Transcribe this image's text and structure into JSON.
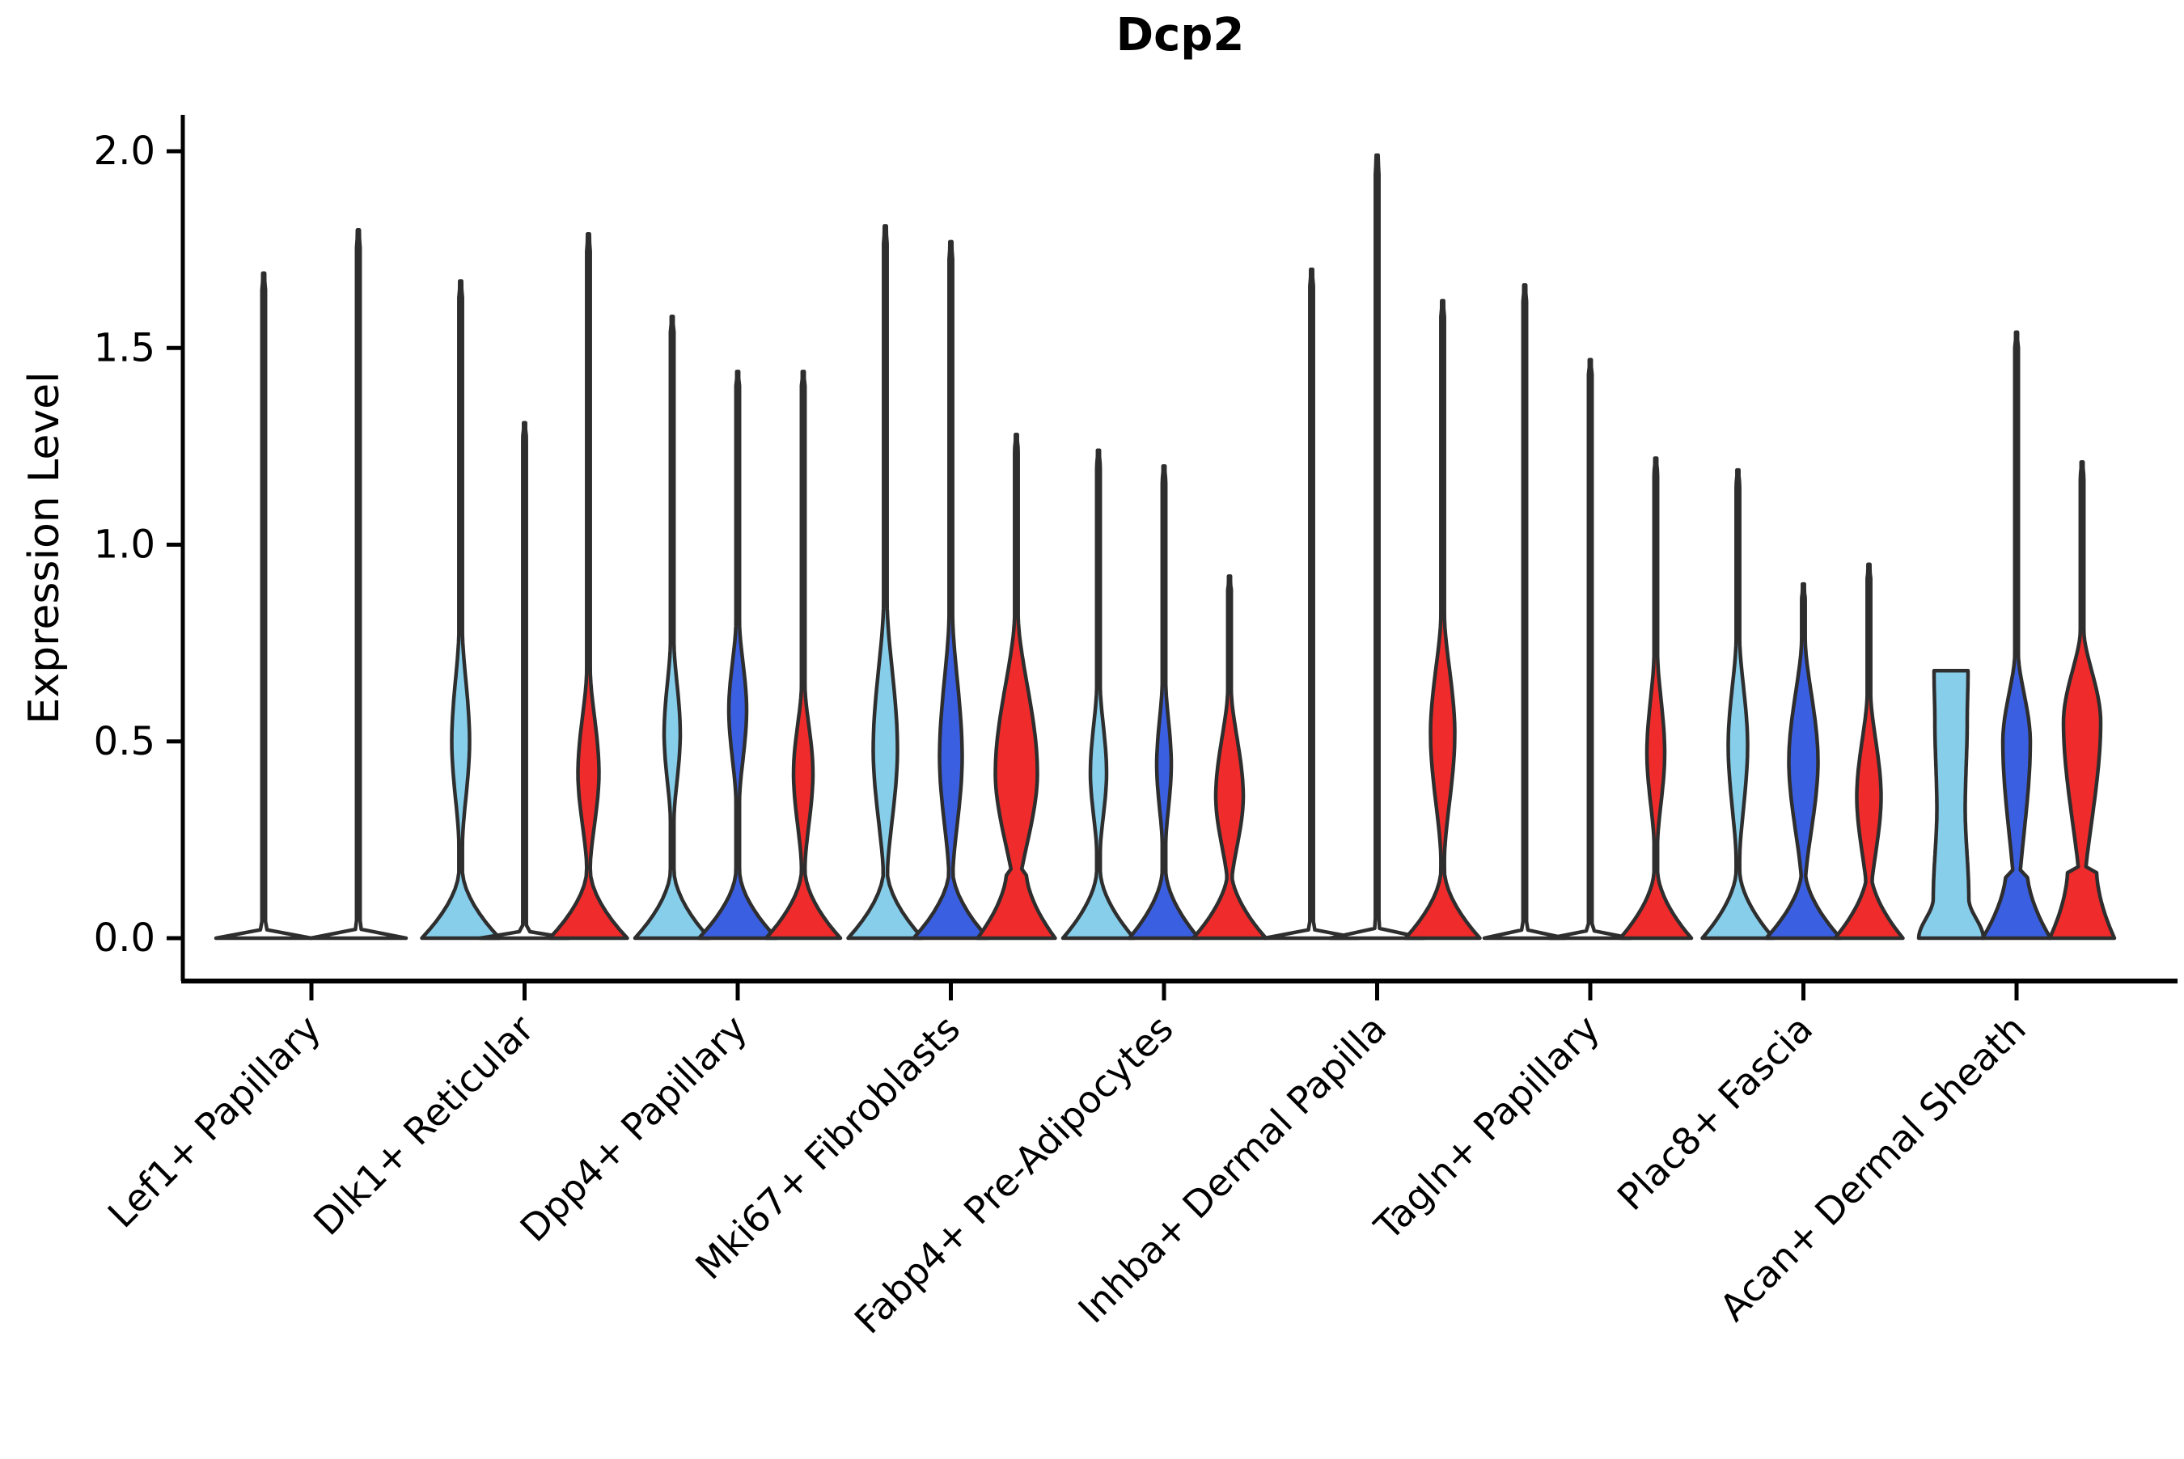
{
  "chart_data": {
    "type": "violin",
    "title": "Dcp2",
    "ylabel": "Expression Level",
    "xlabel": "",
    "ylim": [
      -0.11,
      2.09
    ],
    "yticks": [
      "0.0",
      "0.5",
      "1.0",
      "1.5",
      "2.0"
    ],
    "ytick_values": [
      0.0,
      0.5,
      1.0,
      1.5,
      2.0
    ],
    "grid": false,
    "legend": "none",
    "conditions": [
      {
        "name": "group-lightblue",
        "color": "#87CEEB"
      },
      {
        "name": "group-darkblue",
        "color": "#3B5FE1"
      },
      {
        "name": "group-red",
        "color": "#F02B2B"
      }
    ],
    "outline_color": "#2e2e2e",
    "axis_color": "#000000",
    "categories": [
      {
        "label": "Lef1+ Papillary",
        "violins": [
          {
            "cond": 0,
            "dx": -59,
            "max": 1.69,
            "shape": "needle",
            "bulge": null,
            "base": {
              "type": "flat",
              "hw": 59
            }
          },
          {
            "cond": 1,
            "dx": 58,
            "max": 1.8,
            "shape": "needle",
            "bulge": null,
            "base": {
              "type": "flat",
              "hw": 59
            }
          }
        ]
      },
      {
        "label": "Dlk1+ Reticular",
        "violins": [
          {
            "cond": 0,
            "dx": -79,
            "max": 1.67,
            "shape": "bulge",
            "bulge": {
              "v0": 0.24,
              "vc": 0.5,
              "v1": 0.78,
              "hw": 11
            },
            "base": {
              "type": "tri",
              "hw": 48
            }
          },
          {
            "cond": 1,
            "dx": 0,
            "max": 1.31,
            "shape": "needle",
            "bulge": null,
            "base": {
              "type": "flat",
              "hw": 55
            }
          },
          {
            "cond": 2,
            "dx": 79,
            "max": 1.79,
            "shape": "bulge",
            "bulge": {
              "v0": 0.18,
              "vc": 0.42,
              "v1": 0.68,
              "hw": 13
            },
            "base": {
              "type": "tri",
              "hw": 48
            }
          }
        ]
      },
      {
        "label": "Dpp4+ Papillary",
        "violins": [
          {
            "cond": 0,
            "dx": -81,
            "max": 1.58,
            "shape": "bulge",
            "bulge": {
              "v0": 0.3,
              "vc": 0.52,
              "v1": 0.75,
              "hw": 10
            },
            "base": {
              "type": "tri",
              "hw": 46
            }
          },
          {
            "cond": 1,
            "dx": 0,
            "max": 1.44,
            "shape": "bulge",
            "bulge": {
              "v0": 0.35,
              "vc": 0.58,
              "v1": 0.8,
              "hw": 11
            },
            "base": {
              "type": "tri",
              "hw": 48
            }
          },
          {
            "cond": 2,
            "dx": 81,
            "max": 1.44,
            "shape": "bulge",
            "bulge": {
              "v0": 0.18,
              "vc": 0.42,
              "v1": 0.64,
              "hw": 12
            },
            "base": {
              "type": "tri",
              "hw": 46
            }
          }
        ]
      },
      {
        "label": "Mki67+ Fibroblasts",
        "violins": [
          {
            "cond": 0,
            "dx": -81,
            "max": 1.81,
            "shape": "bulge",
            "bulge": {
              "v0": 0.15,
              "vc": 0.48,
              "v1": 0.85,
              "hw": 15
            },
            "base": {
              "type": "tri",
              "hw": 46
            }
          },
          {
            "cond": 1,
            "dx": 0,
            "max": 1.77,
            "shape": "bulge",
            "bulge": {
              "v0": 0.15,
              "vc": 0.46,
              "v1": 0.82,
              "hw": 14
            },
            "base": {
              "type": "tri",
              "hw": 46
            }
          },
          {
            "cond": 2,
            "dx": 81,
            "max": 1.28,
            "shape": "bulge",
            "neck_hw": 12,
            "bulge": {
              "v0": 0.1,
              "vc": 0.42,
              "v1": 0.82,
              "hw": 26
            },
            "base": {
              "type": "tri",
              "hw": 48
            }
          }
        ]
      },
      {
        "label": "Fabp4+ Pre-Adipocytes",
        "violins": [
          {
            "cond": 0,
            "dx": -81,
            "max": 1.24,
            "shape": "bulge",
            "bulge": {
              "v0": 0.22,
              "vc": 0.42,
              "v1": 0.64,
              "hw": 10
            },
            "base": {
              "type": "tri",
              "hw": 44
            }
          },
          {
            "cond": 1,
            "dx": 0,
            "max": 1.2,
            "shape": "bulge",
            "bulge": {
              "v0": 0.24,
              "vc": 0.44,
              "v1": 0.65,
              "hw": 9
            },
            "base": {
              "type": "tri",
              "hw": 43
            }
          },
          {
            "cond": 2,
            "dx": 81,
            "max": 0.92,
            "shape": "bulge",
            "bulge": {
              "v0": 0.13,
              "vc": 0.36,
              "v1": 0.63,
              "hw": 17
            },
            "base": {
              "type": "tri",
              "hw": 45
            }
          }
        ]
      },
      {
        "label": "Inhba+ Dermal Papilla",
        "violins": [
          {
            "cond": 0,
            "dx": -81,
            "max": 1.7,
            "shape": "needle",
            "bulge": null,
            "base": {
              "type": "flat",
              "hw": 58
            }
          },
          {
            "cond": 1,
            "dx": 0,
            "max": 1.99,
            "shape": "needle",
            "bulge": null,
            "base": {
              "type": "flat",
              "hw": 58
            }
          },
          {
            "cond": 2,
            "dx": 81,
            "max": 1.62,
            "shape": "bulge",
            "bulge": {
              "v0": 0.2,
              "vc": 0.52,
              "v1": 0.82,
              "hw": 15
            },
            "base": {
              "type": "tri",
              "hw": 46
            }
          }
        ]
      },
      {
        "label": "Tagln+ Papillary",
        "violins": [
          {
            "cond": 0,
            "dx": -81,
            "max": 1.66,
            "shape": "needle",
            "bulge": null,
            "base": {
              "type": "flat",
              "hw": 50
            }
          },
          {
            "cond": 1,
            "dx": 0,
            "max": 1.47,
            "shape": "needle",
            "bulge": null,
            "base": {
              "type": "flat",
              "hw": 50
            }
          },
          {
            "cond": 2,
            "dx": 81,
            "max": 1.22,
            "shape": "bulge",
            "bulge": {
              "v0": 0.24,
              "vc": 0.47,
              "v1": 0.72,
              "hw": 11
            },
            "base": {
              "type": "tri",
              "hw": 44
            }
          }
        ]
      },
      {
        "label": "Plac8+ Fascia",
        "violins": [
          {
            "cond": 0,
            "dx": -81,
            "max": 1.19,
            "shape": "bulge",
            "bulge": {
              "v0": 0.2,
              "vc": 0.49,
              "v1": 0.76,
              "hw": 12
            },
            "base": {
              "type": "tri",
              "hw": 44
            }
          },
          {
            "cond": 1,
            "dx": 0,
            "max": 0.9,
            "shape": "bulge",
            "bulge": {
              "v0": 0.13,
              "vc": 0.45,
              "v1": 0.76,
              "hw": 18
            },
            "base": {
              "type": "tri",
              "hw": 46
            }
          },
          {
            "cond": 2,
            "dx": 81,
            "max": 0.95,
            "shape": "bulge",
            "bulge": {
              "v0": 0.1,
              "vc": 0.36,
              "v1": 0.62,
              "hw": 15
            },
            "base": {
              "type": "tri",
              "hw": 42
            }
          }
        ]
      },
      {
        "label": "Acan+ Dermal Sheath",
        "violins": [
          {
            "cond": 0,
            "dx": -81,
            "max": 0.68,
            "shape": "column",
            "keypoints": [
              [
                0,
                40
              ],
              [
                0.1,
                22
              ],
              [
                0.33,
                17.5
              ],
              [
                0.55,
                20
              ],
              [
                0.675,
                21
              ]
            ],
            "bulge": null,
            "base": {
              "type": "tri",
              "hw": 40
            }
          },
          {
            "cond": 1,
            "dx": 0,
            "max": 1.54,
            "shape": "bulge",
            "neck_hw": 13,
            "bulge": {
              "v0": 0.08,
              "vc": 0.5,
              "v1": 0.72,
              "hw": 17
            },
            "base": {
              "type": "tri",
              "hw": 42
            }
          },
          {
            "cond": 2,
            "dx": 81,
            "max": 1.21,
            "shape": "bulge",
            "neck_hw": 18,
            "bulge": {
              "v0": 0.1,
              "vc": 0.55,
              "v1": 0.78,
              "hw": 23
            },
            "base": {
              "type": "tri",
              "hw": 40
            }
          }
        ]
      }
    ]
  },
  "layout_text": {
    "title": "Dcp2",
    "ylabel": "Expression Level"
  }
}
